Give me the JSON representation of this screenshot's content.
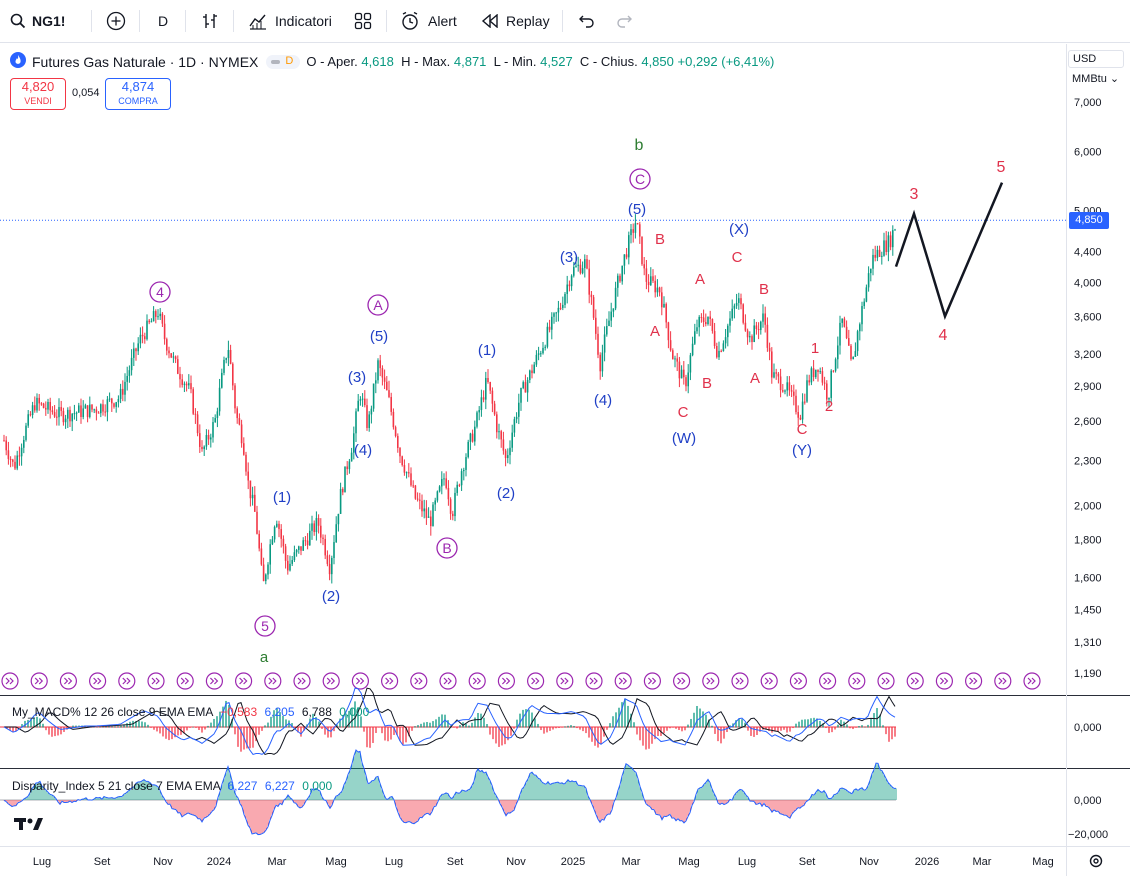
{
  "toolbar": {
    "symbol": "NG1!",
    "interval": "D",
    "indicators_label": "Indicatori",
    "alert_label": "Alert",
    "replay_label": "Replay"
  },
  "legend": {
    "title": "Futures Gas Naturale · 1D · NYMEX",
    "pill_letter": "D",
    "open_label": "O - Aper.",
    "open_value": "4,618",
    "high_label": "H - Max.",
    "high_value": "4,871",
    "low_label": "L - Min.",
    "low_value": "4,527",
    "close_label": "C - Chius.",
    "close_value": "4,850",
    "change": "+0,292 (+6,41%)"
  },
  "trade": {
    "sell_price": "4,820",
    "sell_label": "VENDI",
    "spread": "0,054",
    "buy_price": "4,874",
    "buy_label": "COMPRA"
  },
  "units": {
    "currency": "USD",
    "unit": "MMBtu"
  },
  "price_axis": [
    "7,000",
    "6,000",
    "5,000",
    "4,400",
    "4,000",
    "3,600",
    "3,200",
    "2,900",
    "2,600",
    "2,300",
    "2,000",
    "1,800",
    "1,600",
    "1,450",
    "1,310",
    "1,190"
  ],
  "last_price": "4,850",
  "time_axis": [
    "Lug",
    "Set",
    "Nov",
    "2024",
    "Mar",
    "Mag",
    "Lug",
    "Set",
    "Nov",
    "2025",
    "Mar",
    "Mag",
    "Lug",
    "Set",
    "Nov",
    "2026",
    "Mar",
    "Mag"
  ],
  "macd": {
    "name": "My_MACD% 12 26 close 9 EMA EMA",
    "v1": "−0,583",
    "v2": "6,205",
    "v3": "6,788",
    "v4": "0,000",
    "axis": "0,000"
  },
  "disparity": {
    "name": "Disparity_Index 5 21 close 7 EMA EMA",
    "v1": "6,227",
    "v2": "6,227",
    "v3": "0,000",
    "axis_top": "0,000",
    "axis_bottom": "−20,000"
  },
  "wave_labels": [
    "a",
    "b",
    "④",
    "Ⓐ",
    "Ⓑ",
    "Ⓒ",
    "⑤",
    "(1)",
    "(2)",
    "(3)",
    "(4)",
    "(5)",
    "(W)",
    "(X)",
    "(Y)",
    "A",
    "B",
    "C",
    "1",
    "2",
    "3",
    "4",
    "5"
  ],
  "colors": {
    "up": "#089981",
    "down": "#f23645",
    "blue_wave": "#1f3fc6",
    "red_wave": "#e0314b",
    "purple_wave": "#9c27b0",
    "green_wave": "#2e7d32"
  }
}
